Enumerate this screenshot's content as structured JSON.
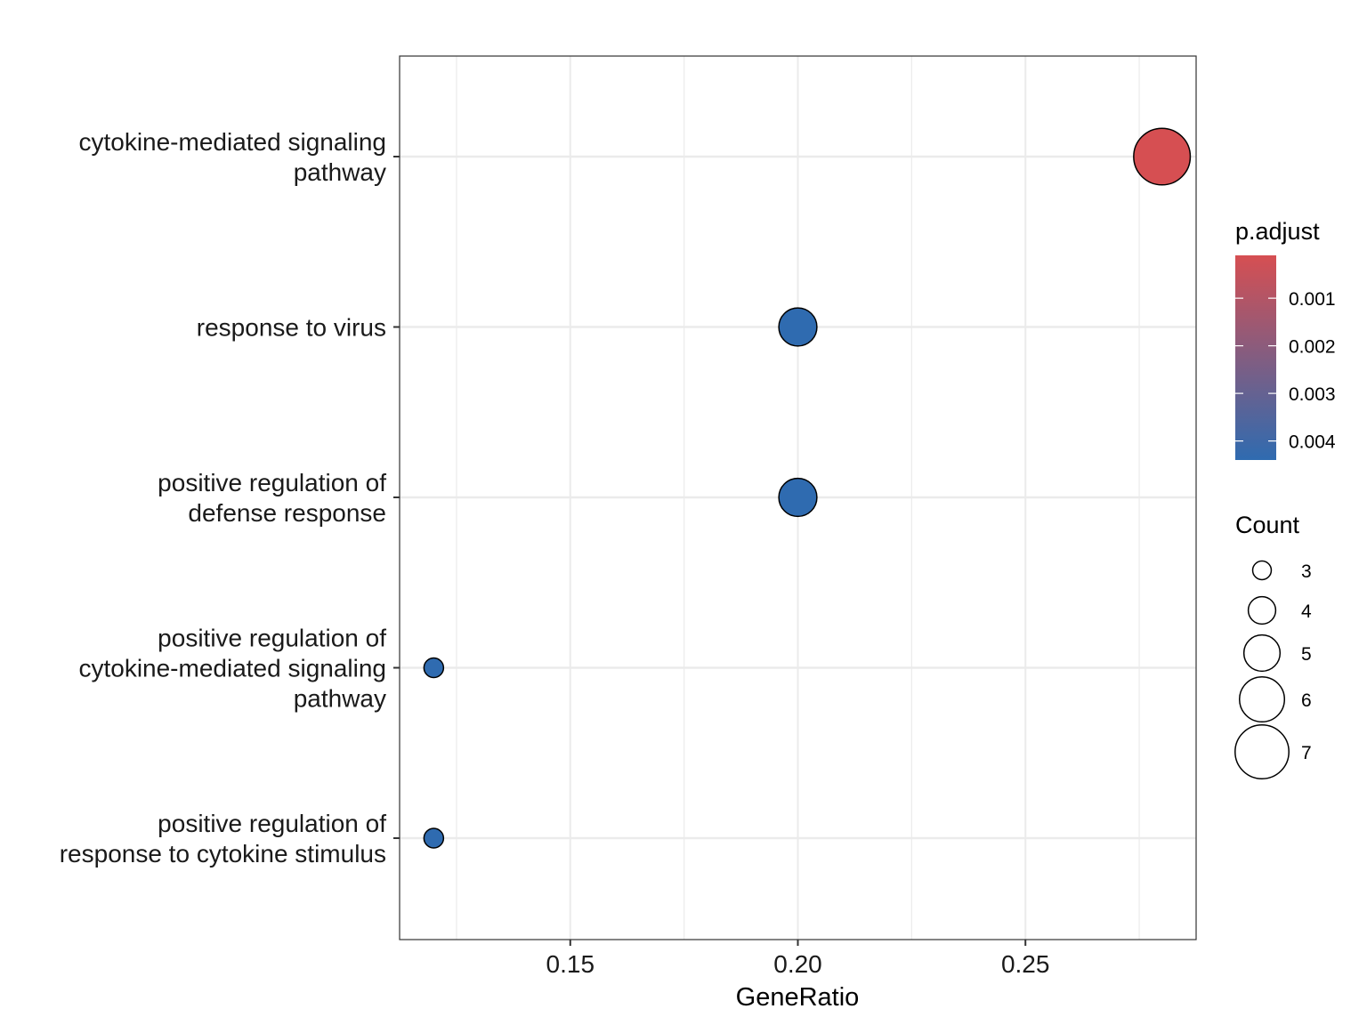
{
  "chart_data": {
    "type": "scatter",
    "title": "",
    "xlabel": "GeneRatio",
    "ylabel": "",
    "xlim": [
      0.1125,
      0.2875
    ],
    "x_ticks": [
      "0.15",
      "0.20",
      "0.25"
    ],
    "x_tick_values": [
      0.15,
      0.2,
      0.25
    ],
    "grid": true,
    "categories": [
      "cytokine-mediated signaling\npathway",
      "response to virus",
      "positive regulation of\ndefense response",
      "positive regulation of\ncytokine-mediated signaling\npathway",
      "positive regulation of\nresponse to cytokine stimulus"
    ],
    "points": [
      {
        "category": 0,
        "x": 0.28,
        "count": 7,
        "p_adjust": 0.0001
      },
      {
        "category": 1,
        "x": 0.2,
        "count": 5,
        "p_adjust": 0.0044
      },
      {
        "category": 2,
        "x": 0.2,
        "count": 5,
        "p_adjust": 0.0044
      },
      {
        "category": 3,
        "x": 0.12,
        "count": 3,
        "p_adjust": 0.0044
      },
      {
        "category": 4,
        "x": 0.12,
        "count": 3,
        "p_adjust": 0.0044
      }
    ],
    "color_legend": {
      "title": "p.adjust",
      "ticks": [
        "0.001",
        "0.002",
        "0.003",
        "0.004"
      ],
      "tick_values": [
        0.001,
        0.002,
        0.003,
        0.004
      ],
      "range": [
        0.0001,
        0.0044
      ],
      "low_color": "#d64f52",
      "high_color": "#2f6bb0"
    },
    "size_legend": {
      "title": "Count",
      "values": [
        3,
        4,
        5,
        6,
        7
      ]
    },
    "legend_position": "right"
  }
}
